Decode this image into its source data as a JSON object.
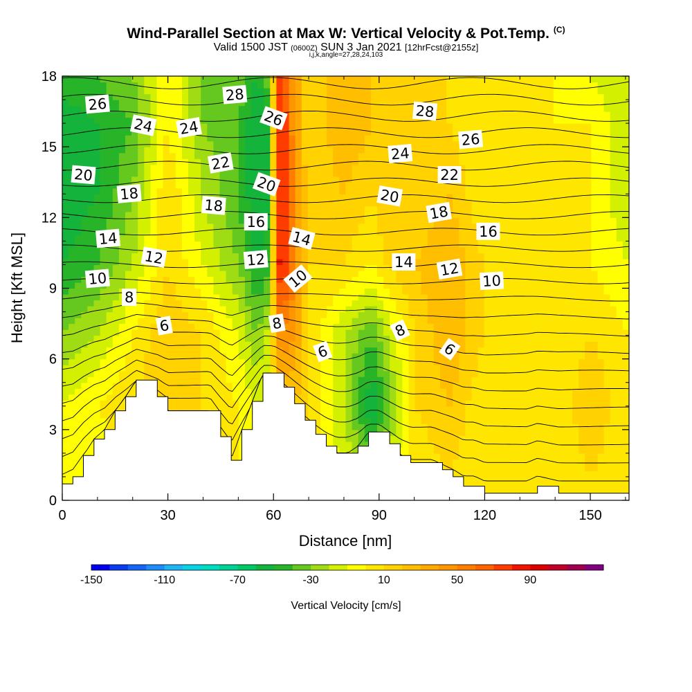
{
  "header": {
    "title": "Wind-Parallel Section at Max W: Vertical Velocity & Pot.Temp.",
    "copyright": "(C)",
    "valid_main": "Valid 1500 JST",
    "valid_utc": "(0600Z)",
    "valid_date": "SUN 3 Jan 2021",
    "fcst": "[12hrFcst@2155z]",
    "section_params": "i,j,k,angle=27,28,24,103"
  },
  "chart_data": {
    "type": "heatmap",
    "xlabel": "Distance [nm]",
    "ylabel": "Height [Kft MSL]",
    "xlim": [
      0,
      161
    ],
    "ylim": [
      0,
      18
    ],
    "x_ticks": [
      "0",
      "30",
      "60",
      "90",
      "120",
      "150"
    ],
    "y_ticks": [
      "0",
      "3",
      "6",
      "9",
      "12",
      "15",
      "18"
    ],
    "colorbar": {
      "label": "Vertical Velocity [cm/s]",
      "tick_labels": [
        "-150",
        "-110",
        "-70",
        "-30",
        "10",
        "50",
        "90"
      ],
      "range": [
        -150,
        130
      ],
      "step": 10,
      "colors": [
        "#0000ee",
        "#0a3cf0",
        "#1464f5",
        "#1e8cf8",
        "#1eb4f5",
        "#0ad2e6",
        "#00dcc0",
        "#00d296",
        "#00c864",
        "#14b43c",
        "#28b428",
        "#64c81e",
        "#a0dc14",
        "#d2f000",
        "#ffff00",
        "#ffe600",
        "#ffd200",
        "#ffbe00",
        "#ffa800",
        "#ff9600",
        "#ff7d00",
        "#ff6400",
        "#ff3c00",
        "#f01400",
        "#dc0000",
        "#c00028",
        "#a00050",
        "#800080"
      ]
    },
    "terrain_profile": {
      "x": [
        0,
        3,
        6,
        9,
        12,
        15,
        18,
        21,
        27,
        30,
        33,
        36,
        39,
        42,
        45,
        48,
        51,
        54,
        57,
        60,
        63,
        66,
        69,
        72,
        75,
        78,
        81,
        84,
        87,
        90,
        93,
        96,
        99,
        102,
        105,
        108,
        111,
        114,
        117,
        120,
        132,
        135,
        141,
        144,
        150,
        153,
        161
      ],
      "height_kft": [
        0.7,
        1.0,
        1.9,
        2.6,
        3.0,
        3.8,
        4.4,
        5.1,
        4.4,
        3.8,
        3.8,
        3.8,
        3.8,
        3.8,
        2.7,
        1.7,
        3.0,
        4.2,
        5.4,
        5.4,
        4.8,
        4.1,
        3.4,
        2.8,
        2.3,
        2.0,
        2.0,
        2.3,
        2.9,
        2.9,
        2.4,
        1.9,
        1.6,
        1.6,
        1.6,
        1.3,
        1.0,
        0.6,
        0.6,
        0.3,
        0.3,
        0.6,
        0.3,
        0.3,
        0.3,
        0.3,
        0.3
      ]
    },
    "velocity_field_cm_s": {
      "x": [
        0,
        10,
        20,
        30,
        40,
        50,
        55,
        58,
        62,
        66,
        70,
        80,
        88,
        92,
        100,
        110,
        120,
        140,
        150,
        161
      ],
      "height_kft": [
        1,
        4,
        7,
        10,
        13,
        16,
        18
      ],
      "values": [
        [
          -10,
          -10,
          0,
          10,
          0,
          0,
          0,
          0,
          10,
          10,
          0,
          -10,
          -30,
          -10,
          0,
          10,
          0,
          0,
          10,
          0
        ],
        [
          -10,
          0,
          10,
          20,
          10,
          0,
          -10,
          -10,
          20,
          20,
          10,
          -20,
          -60,
          -40,
          10,
          20,
          0,
          0,
          20,
          0
        ],
        [
          -30,
          -20,
          0,
          20,
          10,
          -10,
          -30,
          -20,
          50,
          40,
          10,
          -20,
          -40,
          -20,
          10,
          30,
          10,
          0,
          10,
          0
        ],
        [
          -50,
          -40,
          -20,
          10,
          -10,
          -30,
          -50,
          -50,
          90,
          50,
          10,
          10,
          0,
          10,
          20,
          30,
          10,
          0,
          0,
          -10
        ],
        [
          -60,
          -50,
          -30,
          10,
          -20,
          -40,
          -60,
          -60,
          90,
          50,
          10,
          20,
          10,
          20,
          10,
          20,
          0,
          0,
          0,
          -20
        ],
        [
          -60,
          -50,
          -40,
          0,
          -30,
          -40,
          -60,
          -60,
          90,
          40,
          10,
          30,
          20,
          20,
          10,
          10,
          0,
          0,
          0,
          -20
        ],
        [
          -40,
          -40,
          -30,
          0,
          -30,
          -30,
          -50,
          -40,
          80,
          40,
          10,
          30,
          20,
          10,
          10,
          10,
          0,
          0,
          -10,
          -20
        ]
      ]
    },
    "theta_contours": {
      "labels": [
        {
          "text": "26",
          "x": 10,
          "y": 16.8,
          "rot": -5
        },
        {
          "text": "24",
          "x": 23,
          "y": 15.9,
          "rot": 12
        },
        {
          "text": "24",
          "x": 36,
          "y": 15.8,
          "rot": -10
        },
        {
          "text": "28",
          "x": 49,
          "y": 17.2,
          "rot": -5
        },
        {
          "text": "26",
          "x": 60,
          "y": 16.2,
          "rot": 20
        },
        {
          "text": "22",
          "x": 45,
          "y": 14.3,
          "rot": -10
        },
        {
          "text": "20",
          "x": 6,
          "y": 13.8,
          "rot": 5
        },
        {
          "text": "18",
          "x": 19,
          "y": 13.0,
          "rot": -5
        },
        {
          "text": "20",
          "x": 58,
          "y": 13.4,
          "rot": 20
        },
        {
          "text": "18",
          "x": 43,
          "y": 12.5,
          "rot": 5
        },
        {
          "text": "16",
          "x": 55,
          "y": 11.8,
          "rot": 0
        },
        {
          "text": "14",
          "x": 13,
          "y": 11.1,
          "rot": -5
        },
        {
          "text": "12",
          "x": 26,
          "y": 10.3,
          "rot": 10
        },
        {
          "text": "12",
          "x": 55,
          "y": 10.2,
          "rot": -5
        },
        {
          "text": "14",
          "x": 68,
          "y": 11.1,
          "rot": 15
        },
        {
          "text": "10",
          "x": 10,
          "y": 9.4,
          "rot": -5
        },
        {
          "text": "10",
          "x": 67,
          "y": 9.4,
          "rot": -40
        },
        {
          "text": "8",
          "x": 19,
          "y": 8.6,
          "rot": 0
        },
        {
          "text": "8",
          "x": 61,
          "y": 7.5,
          "rot": -10
        },
        {
          "text": "6",
          "x": 29,
          "y": 7.4,
          "rot": -10
        },
        {
          "text": "6",
          "x": 74,
          "y": 6.3,
          "rot": -20
        },
        {
          "text": "28",
          "x": 103,
          "y": 16.5,
          "rot": 5
        },
        {
          "text": "26",
          "x": 116,
          "y": 15.3,
          "rot": -5
        },
        {
          "text": "24",
          "x": 96,
          "y": 14.7,
          "rot": -5
        },
        {
          "text": "22",
          "x": 110,
          "y": 13.8,
          "rot": 0
        },
        {
          "text": "20",
          "x": 93,
          "y": 12.9,
          "rot": 10
        },
        {
          "text": "18",
          "x": 107,
          "y": 12.2,
          "rot": -10
        },
        {
          "text": "16",
          "x": 121,
          "y": 11.4,
          "rot": 0
        },
        {
          "text": "14",
          "x": 97,
          "y": 10.1,
          "rot": 0
        },
        {
          "text": "12",
          "x": 110,
          "y": 9.8,
          "rot": -10
        },
        {
          "text": "10",
          "x": 122,
          "y": 9.3,
          "rot": -3
        },
        {
          "text": "8",
          "x": 96,
          "y": 7.2,
          "rot": -25
        },
        {
          "text": "6",
          "x": 110,
          "y": 6.4,
          "rot": 35
        }
      ]
    }
  }
}
